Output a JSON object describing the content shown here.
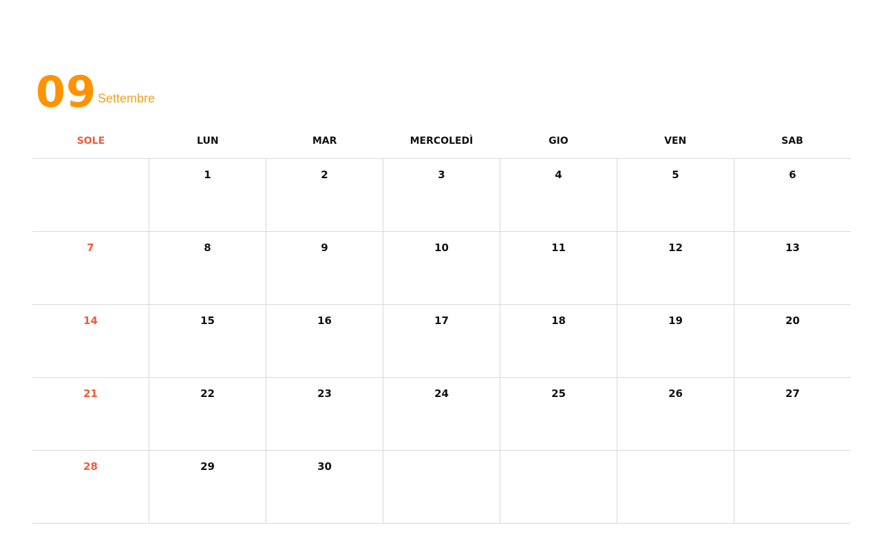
{
  "header": {
    "month_number": "09",
    "month_name": "Settembre"
  },
  "colors": {
    "accent": "#ff9200",
    "sunday": "#ef5a3c"
  },
  "weekdays": [
    "SOLE",
    "LUN",
    "MAR",
    "MERCOLEDÌ",
    "GIO",
    "VEN",
    "SAB"
  ],
  "weeks": [
    [
      "",
      "1",
      "2",
      "3",
      "4",
      "5",
      "6"
    ],
    [
      "7",
      "8",
      "9",
      "10",
      "11",
      "12",
      "13"
    ],
    [
      "14",
      "15",
      "16",
      "17",
      "18",
      "19",
      "20"
    ],
    [
      "21",
      "22",
      "23",
      "24",
      "25",
      "26",
      "27"
    ],
    [
      "28",
      "29",
      "30",
      "",
      "",
      "",
      ""
    ]
  ]
}
